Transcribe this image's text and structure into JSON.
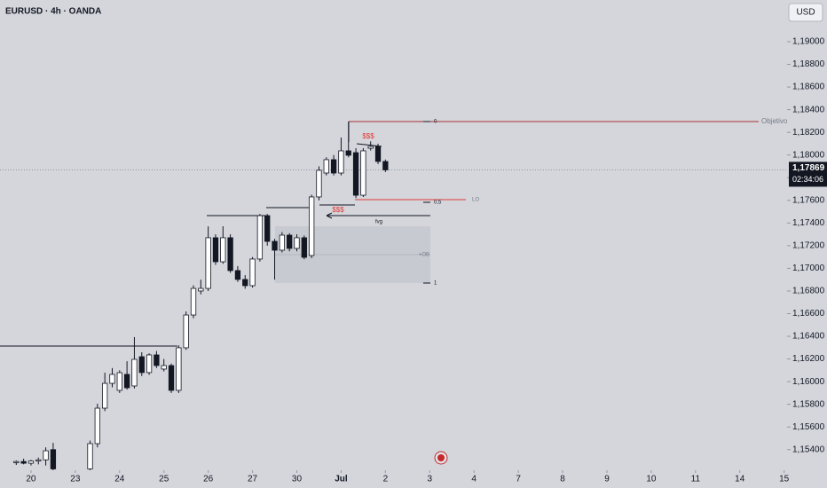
{
  "chart_data": {
    "type": "candlestick",
    "title": "EURUSD · 4h · OANDA",
    "currency": "USD",
    "up_color": "#ffffff",
    "down_color": "#131722",
    "x": [
      -2,
      -1,
      0,
      1,
      2,
      3,
      8,
      9,
      10,
      11,
      12,
      13,
      14,
      15,
      16,
      17,
      18,
      19,
      20,
      21,
      22,
      23,
      24,
      25,
      26,
      27,
      28,
      29,
      30,
      31,
      32,
      33,
      34,
      35,
      36,
      37,
      38,
      39,
      40,
      41,
      42,
      43,
      44,
      45,
      46,
      47,
      48
    ],
    "open": [
      1.15285,
      1.15295,
      1.1528,
      1.153,
      1.1531,
      1.154,
      1.1523,
      1.15453,
      1.15766,
      1.15985,
      1.15923,
      1.16064,
      1.15962,
      1.1622,
      1.1608,
      1.16236,
      1.16111,
      1.16142,
      1.15923,
      1.16299,
      1.16588,
      1.168,
      1.16823,
      1.1727,
      1.17058,
      1.1727,
      1.1698,
      1.16902,
      1.16847,
      1.17082,
      1.17465,
      1.17238,
      1.1716,
      1.17293,
      1.17176,
      1.1727,
      1.17113,
      1.1763,
      1.17841,
      1.17959,
      1.17841,
      1.18037,
      1.18021,
      1.17645,
      1.1806,
      1.18076,
      1.17943
    ],
    "high": [
      1.15305,
      1.1532,
      1.1531,
      1.1533,
      1.1542,
      1.1546,
      1.1548,
      1.15805,
      1.16079,
      1.1612,
      1.161,
      1.1618,
      1.16393,
      1.1626,
      1.1625,
      1.1627,
      1.162,
      1.1616,
      1.1632,
      1.1662,
      1.1685,
      1.169,
      1.1737,
      1.173,
      1.17371,
      1.173,
      1.1702,
      1.1694,
      1.171,
      1.1748,
      1.1748,
      1.1726,
      1.1732,
      1.1731,
      1.173,
      1.1729,
      1.1765,
      1.179,
      1.1798,
      1.18,
      1.18154,
      1.18295,
      1.1806,
      1.1806,
      1.1812,
      1.181,
      1.1796
    ],
    "low": [
      1.15265,
      1.1527,
      1.1526,
      1.1527,
      1.1526,
      1.152,
      1.152,
      1.1542,
      1.1574,
      1.1595,
      1.159,
      1.1593,
      1.1594,
      1.1605,
      1.1606,
      1.1612,
      1.1609,
      1.159,
      1.159,
      1.1628,
      1.1656,
      1.1677,
      1.168,
      1.1703,
      1.1704,
      1.1696,
      1.1688,
      1.1682,
      1.1683,
      1.1706,
      1.172,
      1.169,
      1.1714,
      1.1715,
      1.1715,
      1.1708,
      1.1709,
      1.176,
      1.1782,
      1.1782,
      1.1782,
      1.1798,
      1.1762,
      1.1763,
      1.1804,
      1.1792,
      1.1785
    ],
    "close": [
      1.15295,
      1.1528,
      1.153,
      1.1531,
      1.1539,
      1.1523,
      1.15453,
      1.15766,
      1.15985,
      1.16064,
      1.16079,
      1.15946,
      1.16197,
      1.1608,
      1.16236,
      1.16142,
      1.16142,
      1.15923,
      1.16299,
      1.16588,
      1.16823,
      1.16823,
      1.1727,
      1.17058,
      1.1727,
      1.1698,
      1.16902,
      1.16847,
      1.17082,
      1.17465,
      1.17238,
      1.1716,
      1.17293,
      1.17176,
      1.1727,
      1.17097,
      1.1763,
      1.17865,
      1.17959,
      1.17841,
      1.18037,
      1.17998,
      1.17645,
      1.18037,
      1.18076,
      1.17943,
      1.17869
    ],
    "xlim": [
      -4.2,
      102.4
    ],
    "xticks": [
      {
        "value": 0,
        "label": "20"
      },
      {
        "value": 6,
        "label": "23"
      },
      {
        "value": 12,
        "label": "24"
      },
      {
        "value": 18,
        "label": "25"
      },
      {
        "value": 24,
        "label": "26"
      },
      {
        "value": 30,
        "label": "27"
      },
      {
        "value": 36,
        "label": "30"
      },
      {
        "value": 42,
        "label": "Jul"
      },
      {
        "value": 48,
        "label": "2"
      },
      {
        "value": 54,
        "label": "3"
      },
      {
        "value": 60,
        "label": "4"
      },
      {
        "value": 66,
        "label": "7"
      },
      {
        "value": 72,
        "label": "8"
      },
      {
        "value": 78,
        "label": "9"
      },
      {
        "value": 84,
        "label": "10"
      },
      {
        "value": 90,
        "label": "11"
      },
      {
        "value": 96,
        "label": "14"
      },
      {
        "value": 102,
        "label": "15"
      }
    ],
    "ylim": [
      1.15218,
      1.19368
    ],
    "yticks": [
      {
        "value": 1.19,
        "label": "1,19000"
      },
      {
        "value": 1.188,
        "label": "1,18800"
      },
      {
        "value": 1.186,
        "label": "1,18600"
      },
      {
        "value": 1.184,
        "label": "1,18400"
      },
      {
        "value": 1.182,
        "label": "1,18200"
      },
      {
        "value": 1.18,
        "label": "1,18000"
      },
      {
        "value": 1.178,
        "label": "1,17800"
      },
      {
        "value": 1.176,
        "label": "1,17600"
      },
      {
        "value": 1.174,
        "label": "1,17400"
      },
      {
        "value": 1.172,
        "label": "1,17200"
      },
      {
        "value": 1.17,
        "label": "1,17000"
      },
      {
        "value": 1.168,
        "label": "1,16800"
      },
      {
        "value": 1.166,
        "label": "1,16600"
      },
      {
        "value": 1.164,
        "label": "1,16400"
      },
      {
        "value": 1.162,
        "label": "1,16200"
      },
      {
        "value": 1.16,
        "label": "1,16000"
      },
      {
        "value": 1.158,
        "label": "1,15800"
      },
      {
        "value": 1.156,
        "label": "1,15600"
      },
      {
        "value": 1.154,
        "label": "1,15400"
      }
    ],
    "price_tag": {
      "value": 1.17869,
      "label": "1,17869",
      "countdown": "02:34:06"
    },
    "annotations": [
      "Objetivo",
      "0",
      "0,5",
      "LO",
      "1",
      "+OB",
      "$$$",
      "$$$",
      "fvg"
    ]
  }
}
